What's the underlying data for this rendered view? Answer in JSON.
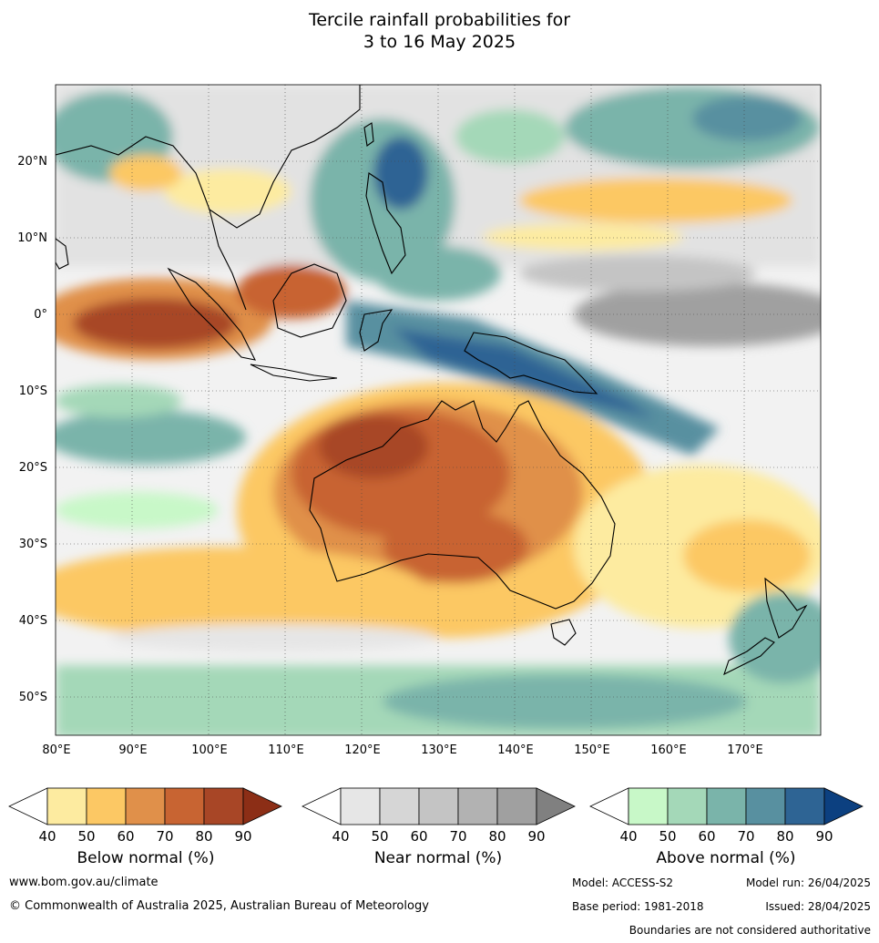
{
  "title": {
    "line1": "Tercile rainfall probabilities for",
    "line2": "3 to 16 May 2025"
  },
  "map": {
    "lon_ticks": [
      "80°E",
      "90°E",
      "100°E",
      "110°E",
      "120°E",
      "130°E",
      "140°E",
      "150°E",
      "160°E",
      "170°E"
    ],
    "lat_ticks": [
      "20°N",
      "10°N",
      "0°",
      "10°S",
      "20°S",
      "30°S",
      "40°S",
      "50°S"
    ],
    "lon_range": [
      80,
      180
    ],
    "lat_range": [
      -55,
      30
    ]
  },
  "colorbars": [
    {
      "id": "below",
      "label": "Below normal (%)",
      "ticks": [
        "40",
        "50",
        "60",
        "70",
        "80",
        "90"
      ],
      "colors": [
        "#fdeba0",
        "#fcc864",
        "#e0904a",
        "#c86432",
        "#a84626",
        "#8c2e16"
      ]
    },
    {
      "id": "near",
      "label": "Near normal (%)",
      "ticks": [
        "40",
        "50",
        "60",
        "70",
        "80",
        "90"
      ],
      "colors": [
        "#e6e6e6",
        "#d6d6d6",
        "#c4c4c4",
        "#b2b2b2",
        "#a0a0a0",
        "#808080"
      ]
    },
    {
      "id": "above",
      "label": "Above normal (%)",
      "ticks": [
        "40",
        "50",
        "60",
        "70",
        "80",
        "90"
      ],
      "colors": [
        "#c8f8c8",
        "#a4d8b8",
        "#7ab4aa",
        "#5890a0",
        "#2e6494",
        "#0c4080"
      ]
    }
  ],
  "footer": {
    "website": "www.bom.gov.au/climate",
    "copyright": "© Commonwealth of Australia 2025, Australian Bureau of Meteorology",
    "model": "Model: ACCESS-S2",
    "model_run": "Model run: 26/04/2025",
    "base_period": "Base period: 1981-2018",
    "issued": "Issued: 28/04/2025",
    "disclaimer": "Boundaries are not considered authoritative"
  }
}
